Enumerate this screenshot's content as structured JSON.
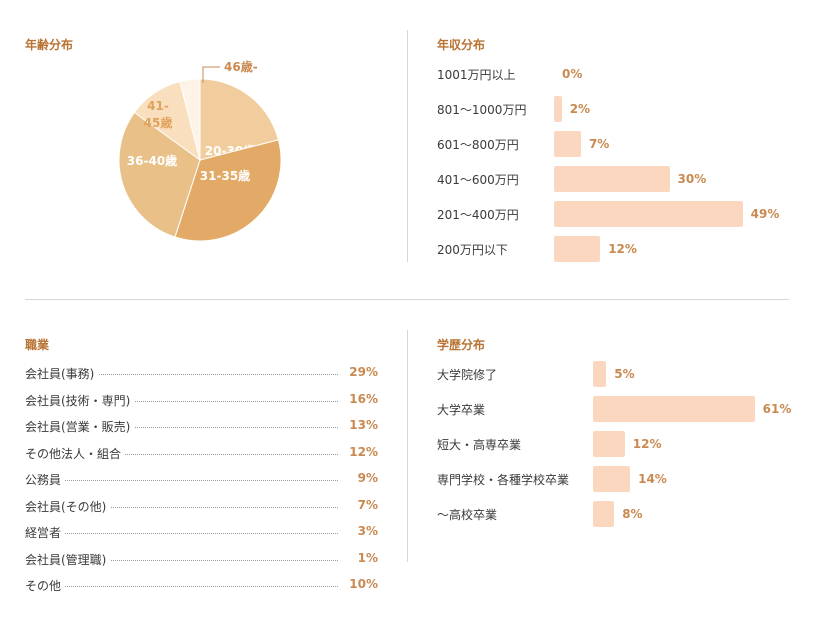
{
  "age": {
    "title": "年齢分布",
    "chart_data": {
      "type": "pie",
      "slices": [
        {
          "label": "20-30歳",
          "value": 21,
          "color": "#f1cc9c"
        },
        {
          "label": "31-35歳",
          "value": 34,
          "color": "#e2aa66"
        },
        {
          "label": "36-40歳",
          "value": 30,
          "color": "#e9c088"
        },
        {
          "label": "41-45歳",
          "value": 11,
          "color": "#f9dfbd"
        },
        {
          "label": "46歳-",
          "value": 4,
          "color": "#fdf3e6"
        }
      ]
    }
  },
  "income": {
    "title": "年収分布",
    "chart_data": {
      "type": "bar",
      "categories": [
        "1001万円以上",
        "801～1000万円",
        "601～800万円",
        "401～600万円",
        "201～400万円",
        "200万円以下"
      ],
      "values": [
        0,
        2,
        7,
        30,
        49,
        12
      ],
      "value_labels": [
        "0%",
        "2%",
        "7%",
        "30%",
        "49%",
        "12%"
      ],
      "xlim": [
        0,
        100
      ]
    }
  },
  "occupation": {
    "title": "職業",
    "chart_data": {
      "type": "table",
      "categories": [
        "会社員(事務)",
        "会社員(技術・専門)",
        "会社員(営業・販売)",
        "その他法人・組合",
        "公務員",
        "会社員(その他)",
        "経営者",
        "会社員(管理職)",
        "その他"
      ],
      "values": [
        29,
        16,
        13,
        12,
        9,
        7,
        3,
        1,
        10
      ],
      "value_labels": [
        "29%",
        "16%",
        "13%",
        "12%",
        "9%",
        "7%",
        "3%",
        "1%",
        "10%"
      ]
    }
  },
  "education": {
    "title": "学歴分布",
    "chart_data": {
      "type": "bar",
      "categories": [
        "大学院修了",
        "大学卒業",
        "短大・高専卒業",
        "専門学校・各種学校卒業",
        "～高校卒業"
      ],
      "values": [
        5,
        61,
        12,
        14,
        8
      ],
      "value_labels": [
        "5%",
        "61%",
        "12%",
        "14%",
        "8%"
      ],
      "xlim": [
        0,
        100
      ]
    }
  }
}
